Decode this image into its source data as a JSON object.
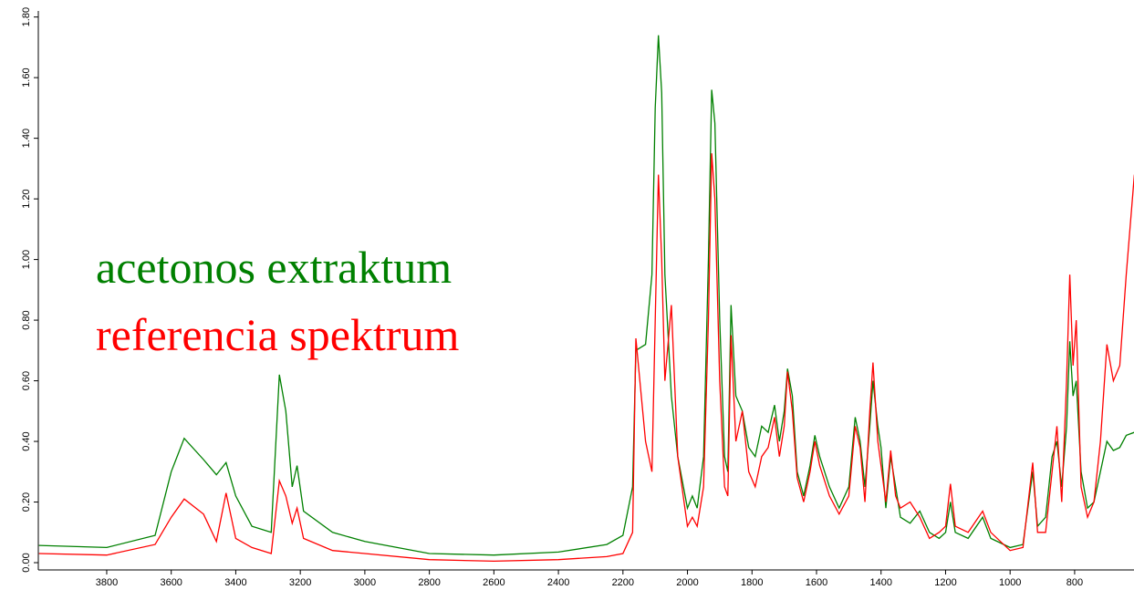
{
  "chart_data": {
    "type": "line",
    "x": [
      4010,
      3800,
      3650,
      3600,
      3560,
      3500,
      3460,
      3430,
      3400,
      3350,
      3290,
      3265,
      3245,
      3225,
      3210,
      3190,
      3100,
      3000,
      2800,
      2600,
      2400,
      2250,
      2200,
      2170,
      2160,
      2130,
      2110,
      2100,
      2090,
      2080,
      2070,
      2050,
      2030,
      2000,
      1985,
      1970,
      1950,
      1935,
      1925,
      1915,
      1900,
      1885,
      1875,
      1865,
      1850,
      1830,
      1810,
      1790,
      1770,
      1750,
      1730,
      1715,
      1700,
      1690,
      1675,
      1660,
      1640,
      1620,
      1605,
      1590,
      1560,
      1530,
      1500,
      1480,
      1465,
      1450,
      1435,
      1425,
      1410,
      1400,
      1385,
      1370,
      1355,
      1340,
      1310,
      1280,
      1250,
      1220,
      1200,
      1185,
      1170,
      1130,
      1085,
      1060,
      1000,
      960,
      930,
      915,
      890,
      870,
      855,
      840,
      825,
      815,
      805,
      795,
      780,
      760,
      740,
      720,
      700,
      680,
      660,
      640,
      615
    ],
    "series": [
      {
        "name": "acetonos extraktum",
        "color": "#008000",
        "values": [
          0.057,
          0.05,
          0.09,
          0.3,
          0.41,
          0.34,
          0.29,
          0.33,
          0.22,
          0.12,
          0.1,
          0.62,
          0.5,
          0.25,
          0.32,
          0.17,
          0.1,
          0.07,
          0.03,
          0.025,
          0.035,
          0.06,
          0.09,
          0.25,
          0.7,
          0.72,
          0.95,
          1.5,
          1.74,
          1.55,
          0.95,
          0.55,
          0.35,
          0.18,
          0.22,
          0.18,
          0.35,
          1.0,
          1.56,
          1.45,
          0.8,
          0.35,
          0.3,
          0.85,
          0.55,
          0.5,
          0.38,
          0.35,
          0.45,
          0.43,
          0.52,
          0.4,
          0.5,
          0.64,
          0.55,
          0.3,
          0.22,
          0.32,
          0.42,
          0.35,
          0.25,
          0.18,
          0.25,
          0.48,
          0.4,
          0.25,
          0.45,
          0.6,
          0.45,
          0.38,
          0.18,
          0.35,
          0.25,
          0.15,
          0.13,
          0.17,
          0.1,
          0.08,
          0.1,
          0.2,
          0.1,
          0.08,
          0.15,
          0.08,
          0.05,
          0.06,
          0.3,
          0.12,
          0.15,
          0.35,
          0.4,
          0.25,
          0.45,
          0.73,
          0.55,
          0.6,
          0.3,
          0.18,
          0.2,
          0.3,
          0.4,
          0.37,
          0.38,
          0.42,
          0.43
        ]
      },
      {
        "name": "referencia spektrum",
        "color": "#ff0000",
        "values": [
          0.03,
          0.025,
          0.06,
          0.15,
          0.21,
          0.16,
          0.07,
          0.23,
          0.08,
          0.05,
          0.03,
          0.27,
          0.22,
          0.13,
          0.18,
          0.08,
          0.04,
          0.03,
          0.01,
          0.005,
          0.01,
          0.02,
          0.03,
          0.1,
          0.74,
          0.4,
          0.3,
          0.8,
          1.28,
          1.0,
          0.6,
          0.85,
          0.35,
          0.12,
          0.15,
          0.12,
          0.25,
          0.8,
          1.35,
          1.2,
          0.6,
          0.25,
          0.22,
          0.75,
          0.4,
          0.5,
          0.3,
          0.25,
          0.35,
          0.38,
          0.48,
          0.35,
          0.45,
          0.63,
          0.5,
          0.28,
          0.2,
          0.3,
          0.4,
          0.32,
          0.22,
          0.16,
          0.22,
          0.45,
          0.38,
          0.2,
          0.5,
          0.66,
          0.4,
          0.32,
          0.2,
          0.37,
          0.22,
          0.18,
          0.2,
          0.15,
          0.08,
          0.1,
          0.12,
          0.26,
          0.12,
          0.1,
          0.17,
          0.1,
          0.04,
          0.05,
          0.33,
          0.1,
          0.1,
          0.3,
          0.45,
          0.2,
          0.6,
          0.95,
          0.65,
          0.8,
          0.25,
          0.15,
          0.2,
          0.4,
          0.72,
          0.6,
          0.65,
          0.95,
          1.28
        ]
      }
    ],
    "xlim": [
      4012,
      616
    ],
    "xticks": [
      3800,
      3600,
      3400,
      3200,
      3000,
      2800,
      2600,
      2400,
      2200,
      2000,
      1800,
      1600,
      1400,
      1200,
      1000,
      800
    ],
    "ylim": [
      -0.024,
      1.82
    ],
    "yticks": [
      {
        "value": 0,
        "label": "0.00"
      },
      {
        "value": 0.2,
        "label": "0.20"
      },
      {
        "value": 0.4,
        "label": "0.40"
      },
      {
        "value": 0.6,
        "label": "0.60"
      },
      {
        "value": 0.8,
        "label": "0.80"
      },
      {
        "value": 1,
        "label": "1.00"
      },
      {
        "value": 1.2,
        "label": "1.20"
      },
      {
        "value": 1.4,
        "label": "1.40"
      },
      {
        "value": 1.6,
        "label": "1.60"
      },
      {
        "value": 1.8,
        "label": "1.80"
      }
    ]
  }
}
